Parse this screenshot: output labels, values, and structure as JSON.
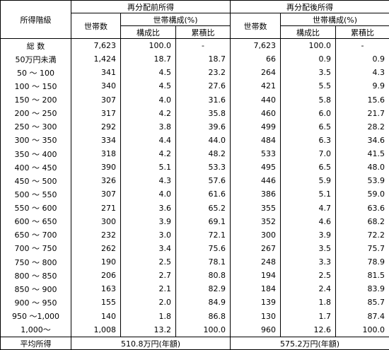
{
  "header": {
    "class_label": "所得階級",
    "before_title": "再分配前所得",
    "after_title": "再分配後所得",
    "households": "世帯数",
    "composition": "世帯構成(%)",
    "ratio": "構成比",
    "cumulative": "累積比"
  },
  "rows": [
    {
      "label": "総 数",
      "b_hh": "7,623",
      "b_ratio": "100.0",
      "b_cum": "-",
      "a_hh": "7,623",
      "a_ratio": "100.0",
      "a_cum": "-"
    },
    {
      "label": "50万円未満",
      "b_hh": "1,424",
      "b_ratio": "18.7",
      "b_cum": "18.7",
      "a_hh": "66",
      "a_ratio": "0.9",
      "a_cum": "0.9"
    },
    {
      "label": "50 ～ 100",
      "b_hh": "341",
      "b_ratio": "4.5",
      "b_cum": "23.2",
      "a_hh": "264",
      "a_ratio": "3.5",
      "a_cum": "4.3"
    },
    {
      "label": "100 ～ 150",
      "b_hh": "340",
      "b_ratio": "4.5",
      "b_cum": "27.6",
      "a_hh": "421",
      "a_ratio": "5.5",
      "a_cum": "9.9"
    },
    {
      "label": "150 ～ 200",
      "b_hh": "307",
      "b_ratio": "4.0",
      "b_cum": "31.6",
      "a_hh": "440",
      "a_ratio": "5.8",
      "a_cum": "15.6"
    },
    {
      "label": "200 ～ 250",
      "b_hh": "317",
      "b_ratio": "4.2",
      "b_cum": "35.8",
      "a_hh": "460",
      "a_ratio": "6.0",
      "a_cum": "21.7"
    },
    {
      "label": "250 ～ 300",
      "b_hh": "292",
      "b_ratio": "3.8",
      "b_cum": "39.6",
      "a_hh": "499",
      "a_ratio": "6.5",
      "a_cum": "28.2"
    },
    {
      "label": "300 ～ 350",
      "b_hh": "334",
      "b_ratio": "4.4",
      "b_cum": "44.0",
      "a_hh": "484",
      "a_ratio": "6.3",
      "a_cum": "34.6"
    },
    {
      "label": "350 ～ 400",
      "b_hh": "318",
      "b_ratio": "4.2",
      "b_cum": "48.2",
      "a_hh": "533",
      "a_ratio": "7.0",
      "a_cum": "41.5"
    },
    {
      "label": "400 ～ 450",
      "b_hh": "390",
      "b_ratio": "5.1",
      "b_cum": "53.3",
      "a_hh": "495",
      "a_ratio": "6.5",
      "a_cum": "48.0"
    },
    {
      "label": "450 ～ 500",
      "b_hh": "326",
      "b_ratio": "4.3",
      "b_cum": "57.6",
      "a_hh": "446",
      "a_ratio": "5.9",
      "a_cum": "53.9"
    },
    {
      "label": "500 ～ 550",
      "b_hh": "307",
      "b_ratio": "4.0",
      "b_cum": "61.6",
      "a_hh": "386",
      "a_ratio": "5.1",
      "a_cum": "59.0"
    },
    {
      "label": "550 ～ 600",
      "b_hh": "271",
      "b_ratio": "3.6",
      "b_cum": "65.2",
      "a_hh": "355",
      "a_ratio": "4.7",
      "a_cum": "63.6"
    },
    {
      "label": "600 ～ 650",
      "b_hh": "300",
      "b_ratio": "3.9",
      "b_cum": "69.1",
      "a_hh": "352",
      "a_ratio": "4.6",
      "a_cum": "68.2"
    },
    {
      "label": "650 ～ 700",
      "b_hh": "232",
      "b_ratio": "3.0",
      "b_cum": "72.1",
      "a_hh": "300",
      "a_ratio": "3.9",
      "a_cum": "72.2"
    },
    {
      "label": "700 ～ 750",
      "b_hh": "262",
      "b_ratio": "3.4",
      "b_cum": "75.6",
      "a_hh": "267",
      "a_ratio": "3.5",
      "a_cum": "75.7"
    },
    {
      "label": "750 ～ 800",
      "b_hh": "190",
      "b_ratio": "2.5",
      "b_cum": "78.1",
      "a_hh": "248",
      "a_ratio": "3.3",
      "a_cum": "78.9"
    },
    {
      "label": "800 ～ 850",
      "b_hh": "206",
      "b_ratio": "2.7",
      "b_cum": "80.8",
      "a_hh": "194",
      "a_ratio": "2.5",
      "a_cum": "81.5"
    },
    {
      "label": "850 ～ 900",
      "b_hh": "163",
      "b_ratio": "2.1",
      "b_cum": "82.9",
      "a_hh": "184",
      "a_ratio": "2.4",
      "a_cum": "83.9"
    },
    {
      "label": "900 ～ 950",
      "b_hh": "155",
      "b_ratio": "2.0",
      "b_cum": "84.9",
      "a_hh": "139",
      "a_ratio": "1.8",
      "a_cum": "85.7"
    },
    {
      "label": "950 ～1,000",
      "b_hh": "140",
      "b_ratio": "1.8",
      "b_cum": "86.8",
      "a_hh": "130",
      "a_ratio": "1.7",
      "a_cum": "87.4"
    },
    {
      "label": "1,000～",
      "b_hh": "1,008",
      "b_ratio": "13.2",
      "b_cum": "100.0",
      "a_hh": "960",
      "a_ratio": "12.6",
      "a_cum": "100.0"
    }
  ],
  "average": {
    "label": "平均所得",
    "before": "510.8万円(年額)",
    "after": "575.2万円(年額)"
  }
}
